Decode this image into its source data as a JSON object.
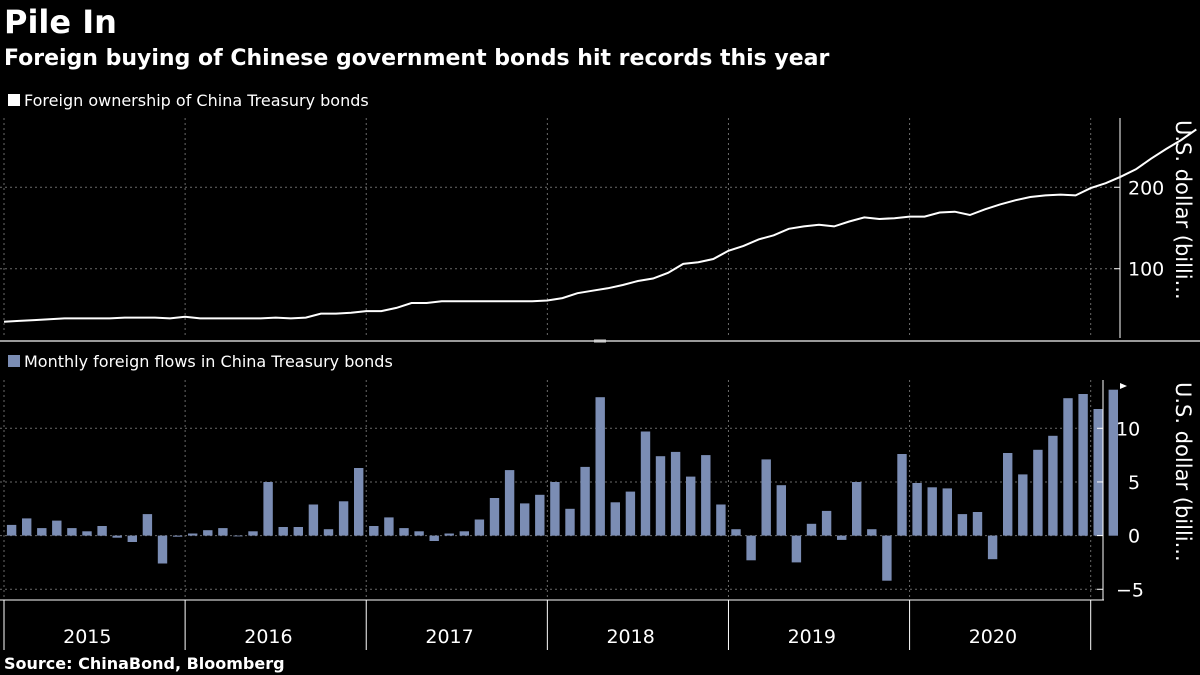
{
  "title": "Pile In",
  "subtitle": "Foreign buying of Chinese government bonds hit records this year",
  "source": "Source: ChinaBond, Bloomberg",
  "colors": {
    "background": "#000000",
    "line": "#ffffff",
    "bar": "#7b8db4",
    "grid": "#6a6a6a",
    "axis": "#ffffff"
  },
  "chart_data": [
    {
      "type": "line",
      "legend": "Foreign ownership of China Treasury bonds",
      "ylabel": "U.S. dollar (billi...",
      "ylim": [
        15,
        285
      ],
      "yticks": [
        100,
        200
      ],
      "x_start": 2014.58,
      "x_end": 2020.67,
      "month_step": 0.08333,
      "values": [
        35,
        36,
        37,
        38,
        39,
        39,
        39,
        39,
        40,
        40,
        40,
        39,
        41,
        39,
        39,
        39,
        39,
        39,
        40,
        39,
        40,
        45,
        45,
        46,
        48,
        48,
        52,
        58,
        58,
        60,
        60,
        60,
        60,
        60,
        60,
        60,
        61,
        64,
        70,
        73,
        76,
        80,
        85,
        88,
        95,
        106,
        108,
        112,
        122,
        128,
        136,
        141,
        149,
        152,
        154,
        152,
        158,
        163,
        161,
        162,
        164,
        164,
        169,
        170,
        166,
        173,
        179,
        184,
        188,
        190,
        191,
        190,
        199,
        205,
        213,
        222,
        235,
        247,
        258,
        271
      ]
    },
    {
      "type": "bar",
      "legend": "Monthly foreign flows in China Treasury bonds",
      "ylabel": "U.S. dollar (billi...",
      "ylim": [
        -6,
        14.5
      ],
      "yticks": [
        -5,
        0,
        5,
        10
      ],
      "x_start": 2014.58,
      "month_step": 0.08333,
      "values": [
        1.0,
        1.6,
        0.7,
        1.4,
        0.7,
        0.4,
        0.9,
        -0.2,
        -0.6,
        2.0,
        -2.6,
        -0.1,
        0.2,
        0.5,
        0.7,
        0.0,
        0.4,
        5.0,
        0.8,
        0.8,
        2.9,
        0.6,
        3.2,
        6.3,
        0.9,
        1.7,
        0.7,
        0.4,
        -0.5,
        0.2,
        0.4,
        1.5,
        3.5,
        6.1,
        3.0,
        3.8,
        5.0,
        2.5,
        6.4,
        12.9,
        3.1,
        4.1,
        9.7,
        7.4,
        7.8,
        5.5,
        7.5,
        2.9,
        0.6,
        -2.3,
        7.1,
        4.7,
        -2.5,
        1.1,
        2.3,
        -0.4,
        5.0,
        0.6,
        -4.2,
        7.6,
        4.9,
        4.5,
        4.4,
        2.0,
        2.2,
        -2.2,
        7.7,
        5.7,
        8.0,
        9.3,
        12.8,
        13.2,
        11.8,
        13.6
      ]
    }
  ],
  "x_axis": {
    "ticks": [
      2014.58,
      2015.58,
      2016.58,
      2017.58,
      2018.58,
      2019.58,
      2020.58
    ],
    "labels": [
      {
        "text": "2015",
        "at": 2015.0
      },
      {
        "text": "2016",
        "at": 2016.0
      },
      {
        "text": "2017",
        "at": 2017.0
      },
      {
        "text": "2018",
        "at": 2018.0
      },
      {
        "text": "2019",
        "at": 2019.0
      },
      {
        "text": "2020",
        "at": 2020.0
      }
    ]
  }
}
